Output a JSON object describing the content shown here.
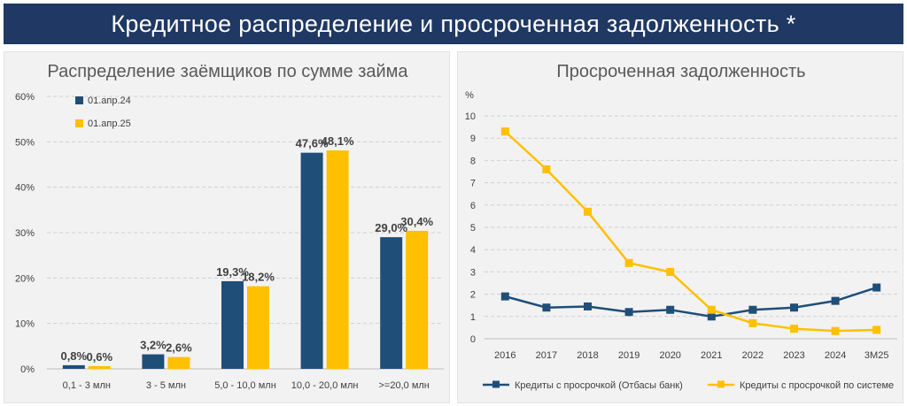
{
  "header": {
    "title": "Кредитное распределение и просроченная задолженность *"
  },
  "colors": {
    "banner": "#1f3864",
    "series_blue": "#1f4e79",
    "series_yellow": "#ffc000",
    "panel_bg": "#f2f2f2"
  },
  "chart_data": [
    {
      "type": "bar",
      "title": "Распределение заёмщиков по сумме займа",
      "xlabel": "",
      "ylabel": "",
      "ylim": [
        0,
        60
      ],
      "y_ticks": [
        "0%",
        "10%",
        "20%",
        "30%",
        "40%",
        "50%",
        "60%"
      ],
      "grid": true,
      "legend_position": "top-left",
      "categories": [
        "0,1 - 3 млн",
        "3 - 5 млн",
        "5,0 - 10,0 млн",
        "10,0 - 20,0 млн",
        ">=20,0 млн"
      ],
      "series": [
        {
          "name": "01.апр.24",
          "color": "#1f4e79",
          "values": [
            0.8,
            3.2,
            19.3,
            47.6,
            29.0
          ],
          "labels": [
            "0,8%",
            "3,2%",
            "19,3%",
            "47,6%",
            "29,0%"
          ]
        },
        {
          "name": "01.апр.25",
          "color": "#ffc000",
          "values": [
            0.6,
            2.6,
            18.2,
            48.1,
            30.4
          ],
          "labels": [
            "0,6%",
            "2,6%",
            "18,2%",
            "48,1%",
            "30,4%"
          ]
        }
      ]
    },
    {
      "type": "line",
      "title": "Просроченная задолженность",
      "ylabel": "%",
      "xlabel": "",
      "ylim": [
        0,
        10
      ],
      "y_ticks": [
        "0",
        "1",
        "2",
        "3",
        "4",
        "5",
        "6",
        "7",
        "8",
        "9",
        "10"
      ],
      "grid": true,
      "legend_position": "bottom",
      "x": [
        "2016",
        "2017",
        "2018",
        "2019",
        "2020",
        "2021",
        "2022",
        "2023",
        "2024",
        "3М25"
      ],
      "series": [
        {
          "name": "Кредиты с просрочкой (Отбасы банк)",
          "color": "#1f4e79",
          "values": [
            1.9,
            1.4,
            1.45,
            1.2,
            1.3,
            1.0,
            1.3,
            1.4,
            1.7,
            2.3
          ]
        },
        {
          "name": "Кредиты с просрочкой по системе",
          "color": "#ffc000",
          "values": [
            9.3,
            7.6,
            5.7,
            3.4,
            3.0,
            1.3,
            0.7,
            0.45,
            0.35,
            0.4
          ]
        }
      ]
    }
  ]
}
